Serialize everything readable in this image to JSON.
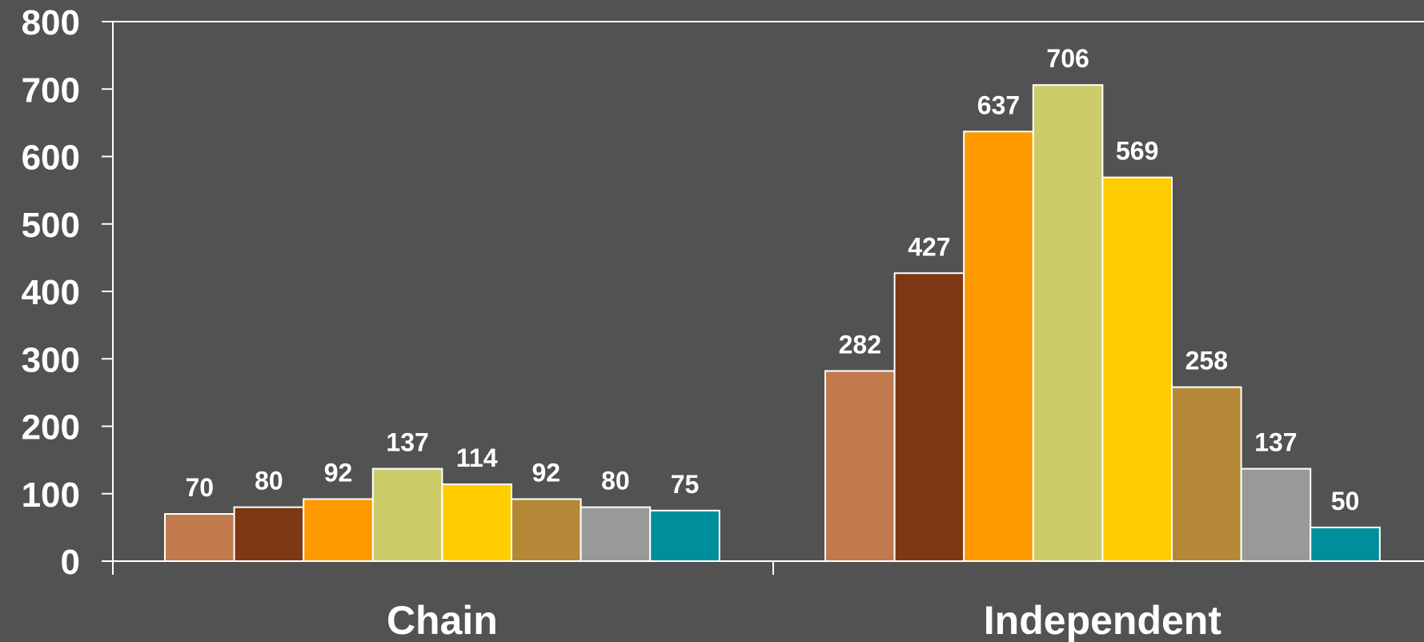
{
  "chart_data": {
    "type": "bar",
    "title": "",
    "xlabel": "",
    "ylabel": "",
    "ylim": [
      0,
      800
    ],
    "yticks": [
      0,
      100,
      200,
      300,
      400,
      500,
      600,
      700,
      800
    ],
    "grid": false,
    "legend": "none",
    "categories": [
      "Chain",
      "Independent"
    ],
    "series": [
      {
        "color": "#c07a4e",
        "values": [
          70,
          282
        ]
      },
      {
        "color": "#7e3813",
        "values": [
          80,
          427
        ]
      },
      {
        "color": "#ff9900",
        "values": [
          92,
          637
        ]
      },
      {
        "color": "#cccc6a",
        "values": [
          137,
          706
        ]
      },
      {
        "color": "#ffcc00",
        "values": [
          114,
          569
        ]
      },
      {
        "color": "#b48836",
        "values": [
          92,
          258
        ]
      },
      {
        "color": "#999999",
        "values": [
          80,
          137
        ]
      },
      {
        "color": "#008e9b",
        "values": [
          75,
          50
        ]
      }
    ],
    "data_labels": true,
    "colors": {
      "background": "#525252",
      "axis": "#ffffff",
      "text": "#ffffff"
    }
  }
}
